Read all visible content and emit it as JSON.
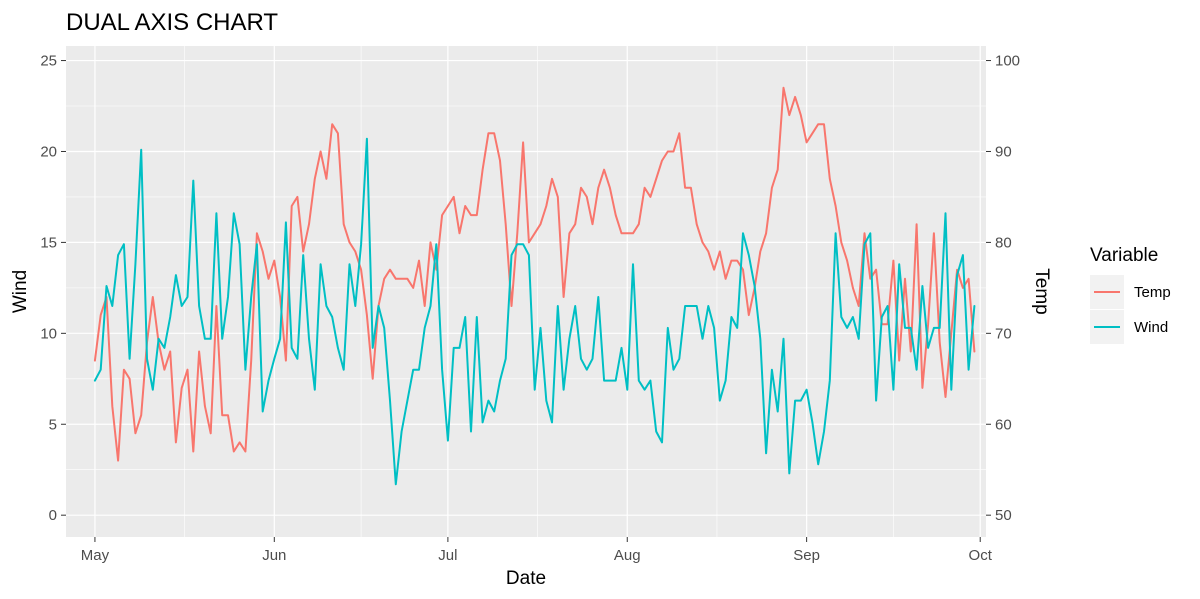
{
  "chart_data": {
    "type": "line",
    "title": "DUAL AXIS CHART",
    "xlabel": "Date",
    "ylabel_left": "Wind",
    "ylabel_right": "Temp",
    "x_ticks": [
      "May",
      "Jun",
      "Jul",
      "Aug",
      "Sep",
      "Oct"
    ],
    "x_range": [
      "1973-04-26",
      "1973-10-02"
    ],
    "ylim_left": [
      -1.2,
      25.8
    ],
    "yticks_left": [
      0,
      5,
      10,
      15,
      20,
      25
    ],
    "ylim_right": [
      47.6,
      101.6
    ],
    "yticks_right": [
      50,
      60,
      70,
      80,
      90,
      100
    ],
    "grid": true,
    "legend": {
      "title": "Variable",
      "position": "right"
    },
    "series": [
      {
        "name": "Temp",
        "axis": "right",
        "color": "#F8766D",
        "x_start": "1973-05-01",
        "x_step_days": 1,
        "values": [
          67,
          72,
          74,
          62,
          56,
          66,
          65,
          59,
          61,
          69,
          74,
          69,
          66,
          68,
          58,
          64,
          66,
          57,
          68,
          62,
          59,
          73,
          61,
          61,
          57,
          58,
          57,
          67,
          81,
          79,
          76,
          78,
          74,
          67,
          84,
          85,
          79,
          82,
          87,
          90,
          87,
          93,
          92,
          82,
          80,
          79,
          77,
          72,
          65,
          73,
          76,
          77,
          76,
          76,
          76,
          75,
          78,
          73,
          80,
          77,
          83,
          84,
          85,
          81,
          84,
          83,
          83,
          88,
          92,
          92,
          89,
          82,
          73,
          81,
          91,
          80,
          81,
          82,
          84,
          87,
          85,
          74,
          81,
          82,
          86,
          85,
          82,
          86,
          88,
          86,
          83,
          81,
          81,
          81,
          82,
          86,
          85,
          87,
          89,
          90,
          90,
          92,
          86,
          86,
          82,
          80,
          79,
          77,
          79,
          76,
          78,
          78,
          77,
          72,
          75,
          79,
          81,
          86,
          88,
          97,
          94,
          96,
          94,
          91,
          92,
          93,
          93,
          87,
          84,
          80,
          78,
          75,
          73,
          81,
          76,
          77,
          71,
          71,
          78,
          67,
          76,
          68,
          82,
          64,
          71,
          81,
          69,
          63,
          70,
          77,
          75,
          76,
          68
        ]
      },
      {
        "name": "Wind",
        "axis": "left",
        "color": "#00BFC4",
        "x_start": "1973-05-01",
        "x_step_days": 1,
        "values": [
          7.4,
          8.0,
          12.6,
          11.5,
          14.3,
          14.9,
          8.6,
          13.8,
          20.1,
          8.6,
          6.9,
          9.7,
          9.2,
          10.9,
          13.2,
          11.5,
          12.0,
          18.4,
          11.5,
          9.7,
          9.7,
          16.6,
          9.7,
          12.0,
          16.6,
          14.9,
          8.0,
          12.0,
          14.9,
          5.7,
          7.4,
          8.6,
          9.7,
          16.1,
          9.2,
          8.6,
          14.3,
          9.7,
          6.9,
          13.8,
          11.5,
          10.9,
          9.2,
          8.0,
          13.8,
          11.5,
          14.9,
          20.7,
          9.2,
          11.5,
          10.3,
          6.3,
          1.7,
          4.6,
          6.3,
          8.0,
          8.0,
          10.3,
          11.5,
          14.9,
          8.0,
          4.1,
          9.2,
          9.2,
          10.9,
          4.6,
          10.9,
          5.1,
          6.3,
          5.7,
          7.4,
          8.6,
          14.3,
          14.9,
          14.9,
          14.3,
          6.9,
          10.3,
          6.3,
          5.1,
          11.5,
          6.9,
          9.7,
          11.5,
          8.6,
          8.0,
          8.6,
          12.0,
          7.4,
          7.4,
          7.4,
          9.2,
          6.9,
          13.8,
          7.4,
          6.9,
          7.4,
          4.6,
          4.0,
          10.3,
          8.0,
          8.6,
          11.5,
          11.5,
          11.5,
          9.7,
          11.5,
          10.3,
          6.3,
          7.4,
          10.9,
          10.3,
          15.5,
          14.3,
          12.6,
          9.7,
          3.4,
          8.0,
          5.7,
          9.7,
          2.3,
          6.3,
          6.3,
          6.9,
          5.1,
          2.8,
          4.6,
          7.4,
          15.5,
          10.9,
          10.3,
          10.9,
          9.7,
          14.9,
          15.5,
          6.3,
          10.9,
          11.5,
          6.9,
          13.8,
          10.3,
          10.3,
          8.0,
          12.6,
          9.2,
          10.3,
          10.3,
          16.6,
          6.9,
          13.2,
          14.3,
          8.0,
          11.5
        ]
      }
    ]
  }
}
